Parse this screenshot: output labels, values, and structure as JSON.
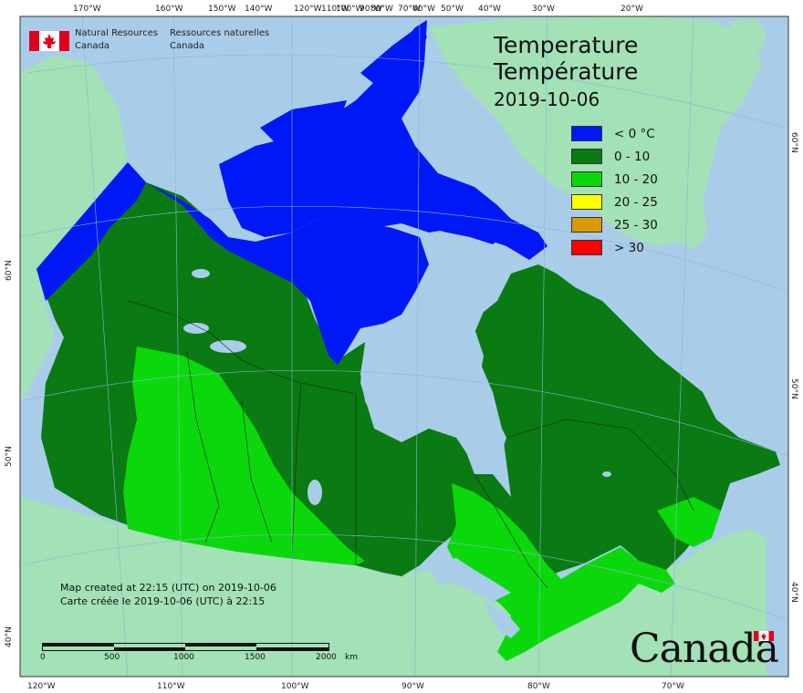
{
  "title": {
    "line1": "Temperature",
    "line2": "Température",
    "date": "2019-10-06"
  },
  "organization": {
    "english_line1": "Natural Resources",
    "english_line2": "Canada",
    "french_line1": "Ressources naturelles",
    "french_line2": "Canada"
  },
  "legend": [
    {
      "label": "< 0 °C",
      "color": "#0018f5"
    },
    {
      "label": "0 - 10",
      "color": "#0a7a12"
    },
    {
      "label": "10 - 20",
      "color": "#0bd80b"
    },
    {
      "label": "20 - 25",
      "color": "#ffff00"
    },
    {
      "label": "25 - 30",
      "color": "#d99a00"
    },
    {
      "label": "> 30",
      "color": "#ff0000"
    }
  ],
  "credit": {
    "line1": "Map created at 22:15 (UTC) on 2019-10-06",
    "line2": "Carte créée le 2019-10-06 (UTC) à 22:15"
  },
  "scale": {
    "labels": [
      "0",
      "500",
      "1000",
      "1500",
      "2000"
    ],
    "unit": "km"
  },
  "top_longitudes": [
    "170°W",
    "160°W",
    "150°W",
    "140°W",
    "120°W",
    "110°W",
    "100°W",
    "90°W",
    "80°W",
    "70°W",
    "60°W",
    "50°W",
    "40°W",
    "30°W",
    "20°W"
  ],
  "bottom_longitudes": [
    "120°W",
    "110°W",
    "100°W",
    "90°W",
    "80°W",
    "70°W"
  ],
  "left_latitudes": [
    "60°N",
    "50°N",
    "40°N"
  ],
  "right_latitudes": [
    "60°N",
    "50°N",
    "40°N"
  ],
  "wordmark": "Canada",
  "colors": {
    "ocean": "#a9cde9",
    "land_other": "#a3e1b7",
    "flag_red": "#e0001b"
  }
}
